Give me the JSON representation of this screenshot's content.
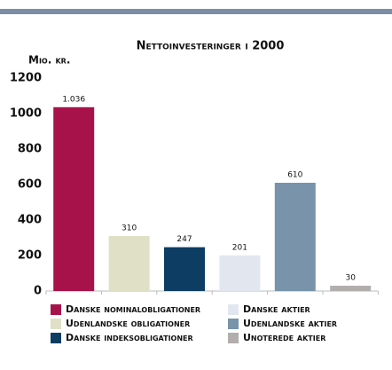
{
  "chart_data": {
    "type": "bar",
    "title": "Nettoinvesteringer i 2000",
    "y_label": "Mio. kr.",
    "categories": [
      "Danske nominalobligationer",
      "Udenlandske obligationer",
      "Danske indeksobligationer",
      "Danske aktier",
      "Udenlandske aktier",
      "Unoterede aktier"
    ],
    "values": [
      1036,
      310,
      247,
      201,
      610,
      30
    ],
    "value_labels": [
      "1.036",
      "310",
      "247",
      "201",
      "610",
      "30"
    ],
    "colors": [
      "#a8124a",
      "#dfe0c6",
      "#0d3d63",
      "#e2e7ef",
      "#7893aa",
      "#b3aeae"
    ],
    "ylim": [
      0,
      1200
    ],
    "yticks": [
      0,
      200,
      400,
      600,
      800,
      1000,
      1200
    ]
  }
}
